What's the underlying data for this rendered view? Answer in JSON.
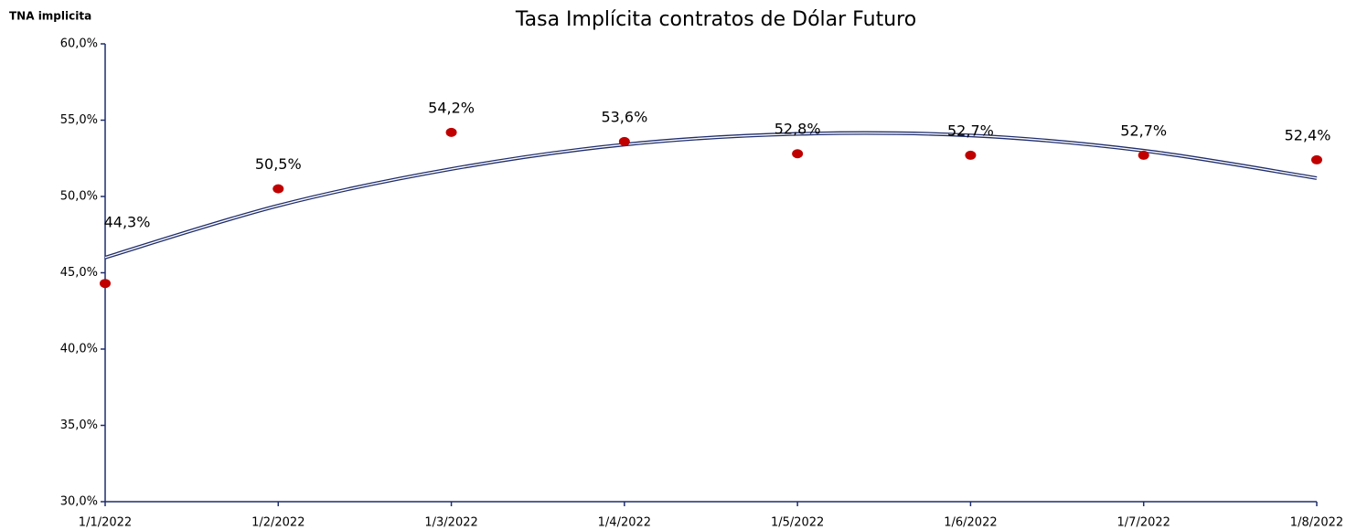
{
  "chart_data": {
    "type": "scatter",
    "title": "Tasa Implícita contratos de Dólar Futuro",
    "y_label": "TNA implicita",
    "categories": [
      "1/1/2022",
      "1/2/2022",
      "1/3/2022",
      "1/4/2022",
      "1/5/2022",
      "1/6/2022",
      "1/7/2022",
      "1/8/2022"
    ],
    "series": [
      {
        "name": "TNA implicita",
        "color": "#c00000",
        "values": [
          44.3,
          50.5,
          54.2,
          53.6,
          52.8,
          52.7,
          52.7,
          52.4
        ],
        "value_labels": [
          "44,3%",
          "50,5%",
          "54,2%",
          "53,6%",
          "52,8%",
          "52,7%",
          "52,7%",
          "52,4%"
        ]
      },
      {
        "name": "Tendencia",
        "color": "#1f2d6b",
        "trendline": true,
        "values": [
          46.0,
          49.4,
          51.8,
          53.4,
          54.1,
          54.0,
          53.0,
          51.2
        ]
      }
    ],
    "ylim": [
      30,
      60
    ],
    "yticks": [
      {
        "value": 30,
        "label": "30,0%"
      },
      {
        "value": 35,
        "label": "35,0%"
      },
      {
        "value": 40,
        "label": "40,0%"
      },
      {
        "value": 45,
        "label": "45,0%"
      },
      {
        "value": 50,
        "label": "50,0%"
      },
      {
        "value": 55,
        "label": "55,0%"
      },
      {
        "value": 60,
        "label": "60,0%"
      }
    ],
    "axis_color": "#1f2d6b"
  }
}
